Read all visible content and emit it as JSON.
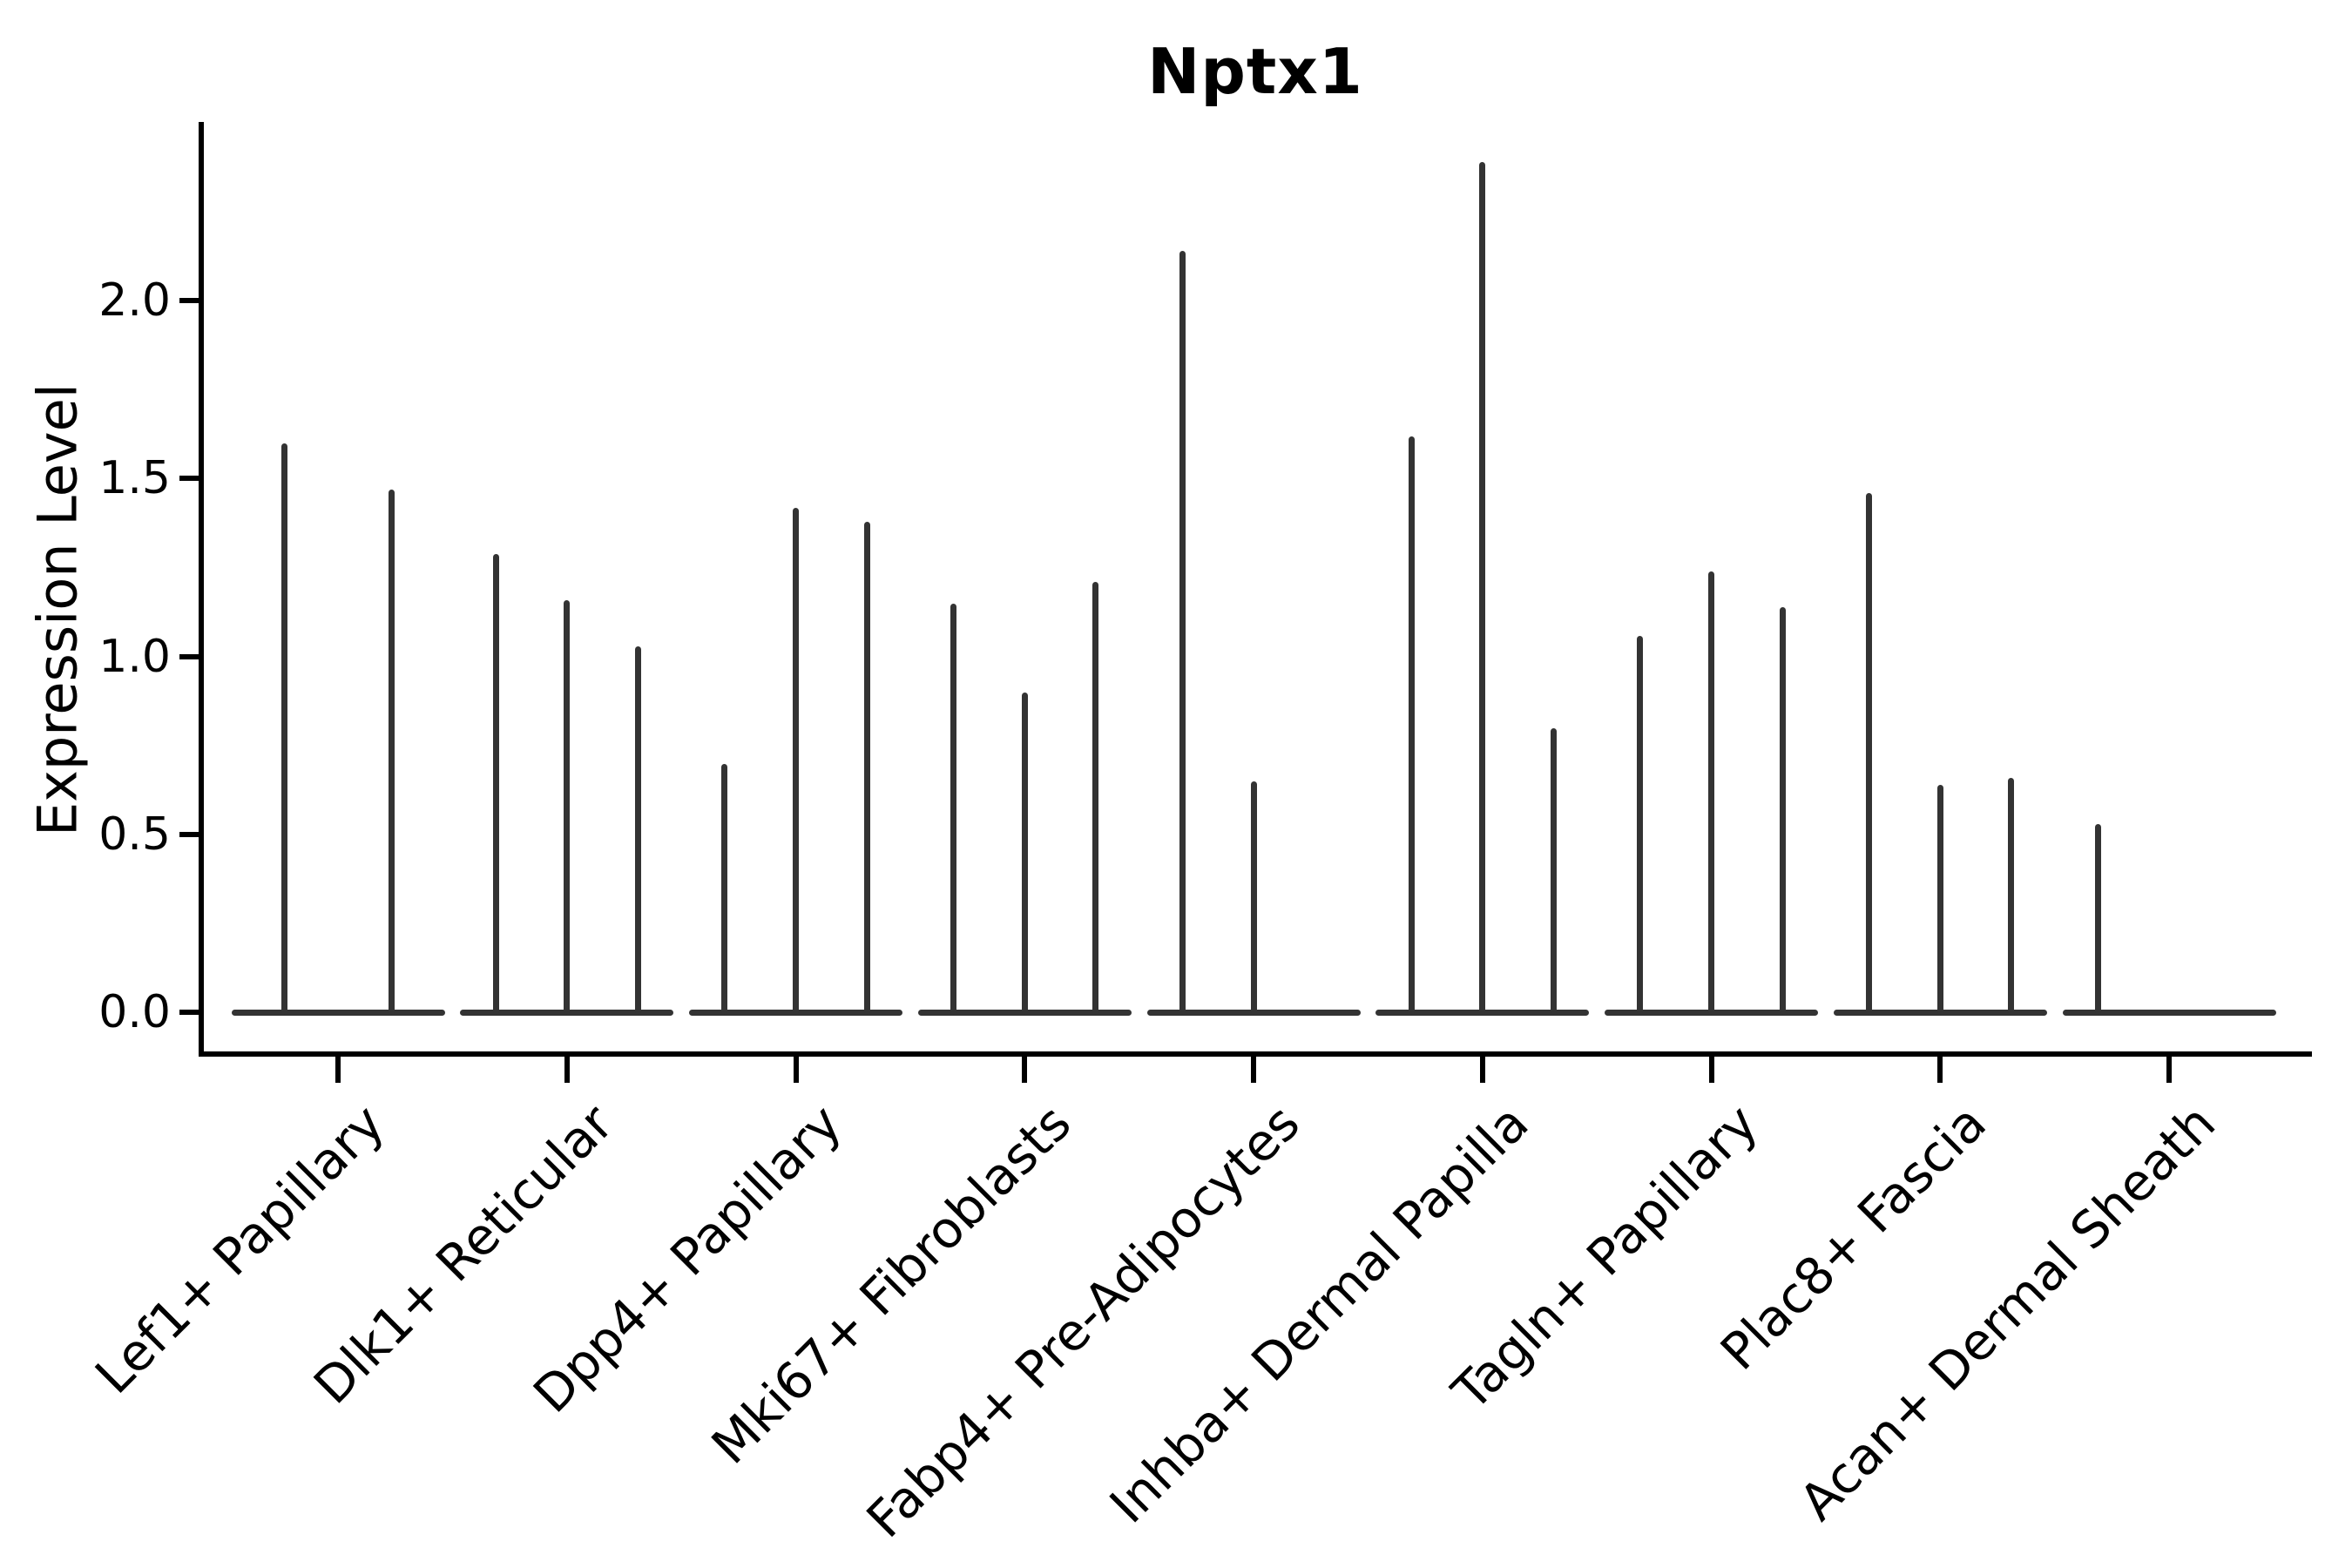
{
  "chart_data": {
    "type": "violin",
    "title": "Nptx1",
    "xlabel": "",
    "ylabel": "Expression Level",
    "ylim": [
      -0.12,
      2.5
    ],
    "yticks": [
      0.0,
      0.5,
      1.0,
      1.5,
      2.0
    ],
    "ytick_labels": [
      "0.0",
      "0.5",
      "1.0",
      "1.5",
      "2.0"
    ],
    "grid": false,
    "legend": "none",
    "categories": [
      "Lef1+ Papillary",
      "Dlk1+ Reticular",
      "Dpp4+ Papillary",
      "Mki67+ Fibroblasts",
      "Fabp4+ Pre-Adipocytes",
      "Inhba+ Dermal Papilla",
      "Tagln+ Papillary",
      "Plac8+ Fascia",
      "Acan+ Dermal Sheath"
    ],
    "groups": [
      {
        "category": "Lef1+ Papillary",
        "violin_peaks": [
          1.59,
          1.46
        ]
      },
      {
        "category": "Dlk1+ Reticular",
        "violin_peaks": [
          1.28,
          1.15,
          1.02
        ]
      },
      {
        "category": "Dpp4+ Papillary",
        "violin_peaks": [
          0.69,
          1.41,
          1.37
        ]
      },
      {
        "category": "Mki67+ Fibroblasts",
        "violin_peaks": [
          1.14,
          0.89,
          1.2
        ]
      },
      {
        "category": "Fabp4+ Pre-Adipocytes",
        "violin_peaks": [
          2.13,
          0.64,
          null
        ]
      },
      {
        "category": "Inhba+ Dermal Papilla",
        "violin_peaks": [
          1.61,
          2.38,
          0.79
        ]
      },
      {
        "category": "Tagln+ Papillary",
        "violin_peaks": [
          1.05,
          1.23,
          1.13
        ]
      },
      {
        "category": "Plac8+ Fascia",
        "violin_peaks": [
          1.45,
          0.63,
          0.65
        ]
      },
      {
        "category": "Acan+ Dermal Sheath",
        "violin_peaks": [
          0.52,
          null,
          null
        ]
      }
    ],
    "colors": {
      "violin": "#333333",
      "axis": "#000000",
      "text": "#000000",
      "background": "#ffffff"
    }
  }
}
